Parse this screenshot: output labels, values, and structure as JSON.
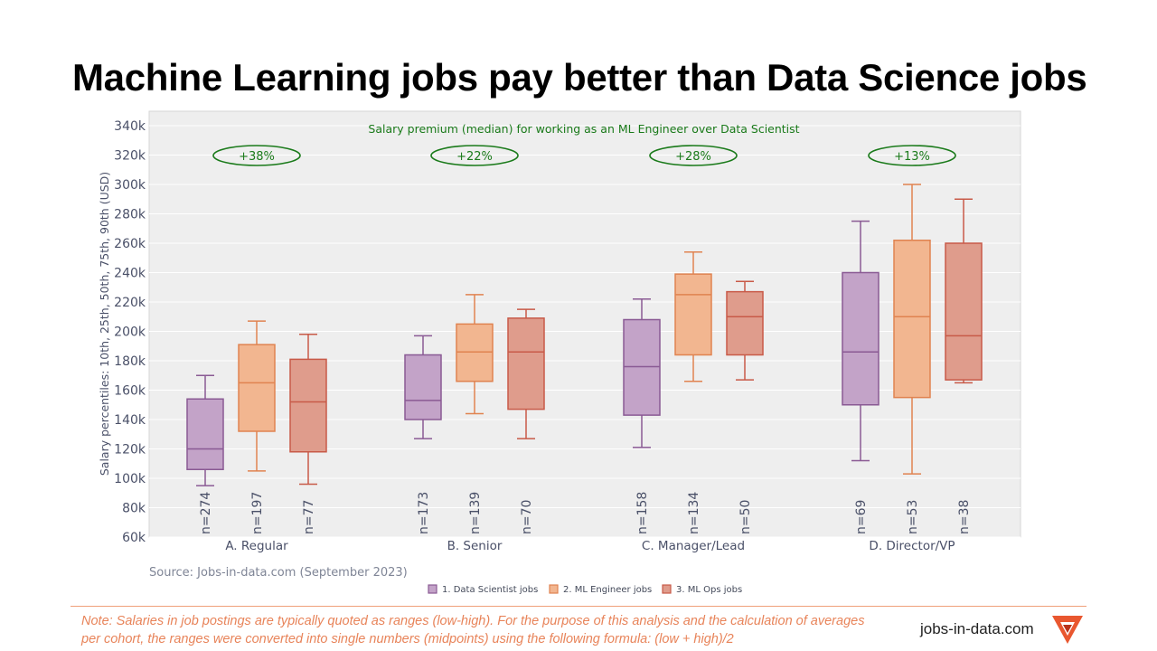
{
  "page": {
    "title": "Machine Learning jobs pay better than Data Science jobs",
    "note": "Note: Salaries in job postings are typically quoted as ranges (low-high). For the purpose of this analysis and the calculation of averages per cohort, the ranges were converted into single numbers (midpoints) using the following formula: (low + high)/2",
    "brand": "jobs-in-data.com",
    "source": "Source: Jobs-in-data.com (September 2023)"
  },
  "chart_data": {
    "type": "box",
    "title": "Salary premium (median) for working as an ML Engineer over Data Scientist",
    "ylabel": "Salary percentiles: 10th, 25th, 50th, 75th, 90th (USD)",
    "ylim": [
      60000,
      348000
    ],
    "yticks": [
      60000,
      80000,
      100000,
      120000,
      140000,
      160000,
      180000,
      200000,
      220000,
      240000,
      260000,
      280000,
      300000,
      320000,
      340000
    ],
    "ytick_labels": [
      "60k",
      "80k",
      "100k",
      "120k",
      "140k",
      "160k",
      "180k",
      "200k",
      "220k",
      "240k",
      "260k",
      "280k",
      "300k",
      "320k",
      "340k"
    ],
    "grid": true,
    "legend_position": "bottom",
    "categories": [
      "A. Regular",
      "B. Senior",
      "C. Manager/Lead",
      "D. Director/VP"
    ],
    "premiums": [
      "+38%",
      "+22%",
      "+28%",
      "+13%"
    ],
    "series": [
      {
        "name": "1. Data Scientist jobs",
        "stroke": "#8a5a94",
        "fill": "#c3a3c8",
        "boxes": [
          {
            "p10": 95000,
            "p25": 106000,
            "p50": 120000,
            "p75": 154000,
            "p90": 170000,
            "n": "n=274"
          },
          {
            "p10": 127000,
            "p25": 140000,
            "p50": 153000,
            "p75": 184000,
            "p90": 197000,
            "n": "n=173"
          },
          {
            "p10": 121000,
            "p25": 143000,
            "p50": 176000,
            "p75": 208000,
            "p90": 222000,
            "n": "n=158"
          },
          {
            "p10": 112000,
            "p25": 150000,
            "p50": 186000,
            "p75": 240000,
            "p90": 275000,
            "n": "n=69"
          }
        ]
      },
      {
        "name": "2. ML Engineer jobs",
        "stroke": "#e08350",
        "fill": "#f2b690",
        "boxes": [
          {
            "p10": 105000,
            "p25": 132000,
            "p50": 165000,
            "p75": 191000,
            "p90": 207000,
            "n": "n=197"
          },
          {
            "p10": 144000,
            "p25": 166000,
            "p50": 186000,
            "p75": 205000,
            "p90": 225000,
            "n": "n=139"
          },
          {
            "p10": 166000,
            "p25": 184000,
            "p50": 225000,
            "p75": 239000,
            "p90": 254000,
            "n": "n=134"
          },
          {
            "p10": 103000,
            "p25": 155000,
            "p50": 210000,
            "p75": 262000,
            "p90": 300000,
            "n": "n=53"
          }
        ]
      },
      {
        "name": "3. ML Ops jobs",
        "stroke": "#c85a48",
        "fill": "#df9c8c",
        "boxes": [
          {
            "p10": 96000,
            "p25": 118000,
            "p50": 152000,
            "p75": 181000,
            "p90": 198000,
            "n": "n=77"
          },
          {
            "p10": 127000,
            "p25": 147000,
            "p50": 186000,
            "p75": 209000,
            "p90": 215000,
            "n": "n=70"
          },
          {
            "p10": 167000,
            "p25": 184000,
            "p50": 210000,
            "p75": 227000,
            "p90": 234000,
            "n": "n=50"
          },
          {
            "p10": 165000,
            "p25": 167000,
            "p50": 197000,
            "p75": 260000,
            "p90": 290000,
            "n": "n=38"
          }
        ]
      }
    ],
    "colors": {
      "plot_bg": "#eeeeee",
      "grid": "#ffffff",
      "axis_text": "#4a5068",
      "annotation": "#1a7a1a"
    }
  }
}
